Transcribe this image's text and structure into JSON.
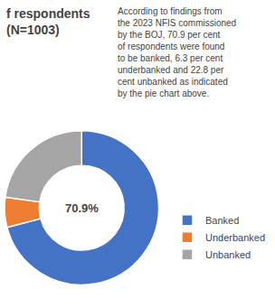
{
  "chart_data": {
    "type": "pie",
    "title": "f respondents",
    "subtitle": "(N=1003)",
    "annotation": "According to findings from\nthe 2023 NFIS commissioned\nby the BOJ, 70.9 per cent\nof respondents were found\nto be banked, 6.3 per cent\nunderbanked and 22.8 per\ncent unbanked as indicated\nby the pie chart above.",
    "categories": [
      "Banked",
      "Underbanked",
      "Unbanked"
    ],
    "values": [
      70.9,
      6.3,
      22.8
    ],
    "colors": [
      "#4472C4",
      "#ED7D31",
      "#A5A5A5"
    ],
    "center_label": "70.9%",
    "legend": "lower right"
  }
}
